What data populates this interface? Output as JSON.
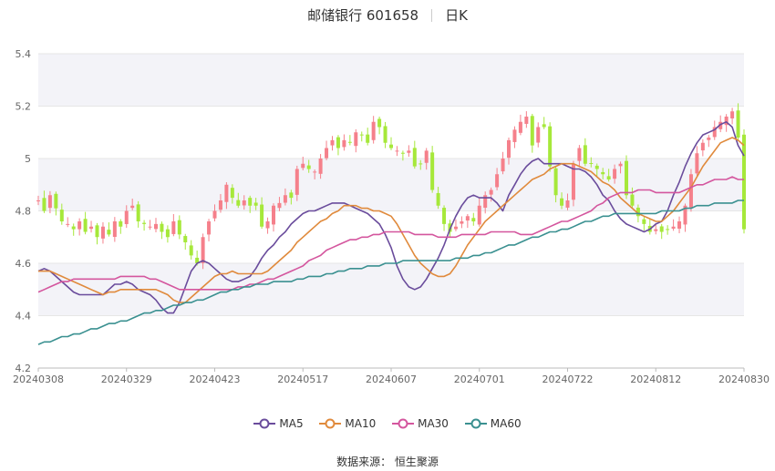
{
  "title": {
    "name": "邮储银行 601658",
    "period": "日K"
  },
  "source_text": "数据来源： 恒生聚源",
  "colors": {
    "up": "#f5808b",
    "down": "#a6e83a",
    "ma5": "#6a4c9c",
    "ma10": "#e08a3c",
    "ma30": "#d4569e",
    "ma60": "#3a9090",
    "band": "#f3f3f8",
    "grid": "#e6e6e6",
    "axis_text": "#666666"
  },
  "chart_data": {
    "type": "candlestick",
    "title": "邮储银行 601658",
    "subtitle": "日K",
    "ylim": [
      4.2,
      5.4
    ],
    "y_ticks": [
      "4.2",
      "4.4",
      "4.6",
      "4.8",
      "5",
      "5.2",
      "5.4"
    ],
    "x_ticks": [
      "20240308",
      "20240329",
      "20240423",
      "20240517",
      "20240607",
      "20240701",
      "20240722",
      "20240812",
      "20240830"
    ],
    "grid": true,
    "legend_position": "bottom",
    "legend": [
      "MA5",
      "MA10",
      "MA30",
      "MA60"
    ],
    "candles_count": 121,
    "closes": [
      4.84,
      4.8,
      4.86,
      4.81,
      4.76,
      4.75,
      4.73,
      4.76,
      4.72,
      4.74,
      4.7,
      4.74,
      4.71,
      4.76,
      4.74,
      4.8,
      4.82,
      4.76,
      4.75,
      4.74,
      4.75,
      4.72,
      4.7,
      4.76,
      4.71,
      4.68,
      4.63,
      4.6,
      4.7,
      4.76,
      4.8,
      4.84,
      4.9,
      4.85,
      4.82,
      4.84,
      4.82,
      4.82,
      4.74,
      4.76,
      4.82,
      4.83,
      4.86,
      4.85,
      4.96,
      4.98,
      4.96,
      4.95,
      5.0,
      5.04,
      5.07,
      5.04,
      5.07,
      5.06,
      5.1,
      5.09,
      5.06,
      5.14,
      5.12,
      5.06,
      5.04,
      5.03,
      5.02,
      5.03,
      4.97,
      4.98,
      5.03,
      4.88,
      4.82,
      4.75,
      4.72,
      4.74,
      4.76,
      4.78,
      4.76,
      4.82,
      4.86,
      4.88,
      4.94,
      5.0,
      5.07,
      5.11,
      5.14,
      5.16,
      5.05,
      5.12,
      5.12,
      4.97,
      4.86,
      4.82,
      4.84,
      4.98,
      5.04,
      4.98,
      4.98,
      4.96,
      4.94,
      4.92,
      4.96,
      4.98,
      4.86,
      4.82,
      4.78,
      4.75,
      4.72,
      4.73,
      4.72,
      4.73,
      4.74,
      4.76,
      4.82,
      4.94,
      5.02,
      5.06,
      5.08,
      5.12,
      5.14,
      5.16,
      5.18,
      5.08,
      4.73
    ],
    "series": [
      {
        "name": "MA5",
        "values": [
          4.57,
          4.58,
          4.57,
          4.55,
          4.53,
          4.51,
          4.49,
          4.48,
          4.48,
          4.48,
          4.48,
          4.48,
          4.5,
          4.52,
          4.52,
          4.53,
          4.52,
          4.5,
          4.49,
          4.48,
          4.46,
          4.43,
          4.41,
          4.41,
          4.45,
          4.51,
          4.57,
          4.6,
          4.61,
          4.6,
          4.58,
          4.56,
          4.54,
          4.53,
          4.53,
          4.54,
          4.55,
          4.58,
          4.62,
          4.65,
          4.67,
          4.7,
          4.72,
          4.75,
          4.77,
          4.79,
          4.8,
          4.8,
          4.81,
          4.82,
          4.83,
          4.83,
          4.83,
          4.82,
          4.81,
          4.8,
          4.79,
          4.77,
          4.75,
          4.71,
          4.66,
          4.59,
          4.54,
          4.51,
          4.5,
          4.51,
          4.54,
          4.58,
          4.62,
          4.67,
          4.73,
          4.78,
          4.82,
          4.85,
          4.86,
          4.85,
          4.85,
          4.85,
          4.83,
          4.8,
          4.86,
          4.9,
          4.94,
          4.97,
          4.99,
          5.0,
          4.98,
          4.98,
          4.98,
          4.98,
          4.97,
          4.96,
          4.96,
          4.95,
          4.93,
          4.9,
          4.86,
          4.84,
          4.8,
          4.77,
          4.75,
          4.74,
          4.73,
          4.72,
          4.73,
          4.75,
          4.76,
          4.8,
          4.86,
          4.91,
          4.97,
          5.02,
          5.06,
          5.09,
          5.1,
          5.11,
          5.13,
          5.14,
          5.12,
          5.05,
          5.01
        ]
      },
      {
        "name": "MA10",
        "values": [
          4.57,
          4.57,
          4.57,
          4.56,
          4.55,
          4.54,
          4.53,
          4.52,
          4.51,
          4.5,
          4.49,
          4.48,
          4.49,
          4.49,
          4.5,
          4.5,
          4.5,
          4.5,
          4.5,
          4.5,
          4.5,
          4.49,
          4.48,
          4.46,
          4.45,
          4.45,
          4.47,
          4.49,
          4.51,
          4.53,
          4.55,
          4.56,
          4.56,
          4.57,
          4.56,
          4.56,
          4.56,
          4.56,
          4.56,
          4.57,
          4.59,
          4.61,
          4.63,
          4.65,
          4.68,
          4.7,
          4.72,
          4.74,
          4.76,
          4.77,
          4.79,
          4.8,
          4.82,
          4.82,
          4.82,
          4.81,
          4.81,
          4.8,
          4.8,
          4.79,
          4.78,
          4.75,
          4.71,
          4.67,
          4.63,
          4.6,
          4.58,
          4.56,
          4.55,
          4.55,
          4.56,
          4.59,
          4.63,
          4.67,
          4.7,
          4.73,
          4.76,
          4.78,
          4.8,
          4.82,
          4.84,
          4.86,
          4.88,
          4.9,
          4.92,
          4.93,
          4.94,
          4.96,
          4.97,
          4.98,
          4.98,
          4.98,
          4.97,
          4.96,
          4.95,
          4.93,
          4.91,
          4.9,
          4.88,
          4.85,
          4.83,
          4.81,
          4.79,
          4.78,
          4.77,
          4.76,
          4.76,
          4.78,
          4.8,
          4.83,
          4.86,
          4.89,
          4.93,
          4.97,
          5.0,
          5.03,
          5.06,
          5.07,
          5.08,
          5.07,
          5.05
        ]
      },
      {
        "name": "MA30",
        "values": [
          4.49,
          4.5,
          4.51,
          4.52,
          4.53,
          4.53,
          4.54,
          4.54,
          4.54,
          4.54,
          4.54,
          4.54,
          4.54,
          4.54,
          4.55,
          4.55,
          4.55,
          4.55,
          4.55,
          4.54,
          4.54,
          4.53,
          4.52,
          4.51,
          4.5,
          4.5,
          4.5,
          4.5,
          4.5,
          4.5,
          4.5,
          4.5,
          4.5,
          4.5,
          4.51,
          4.51,
          4.52,
          4.52,
          4.53,
          4.54,
          4.54,
          4.55,
          4.56,
          4.57,
          4.58,
          4.59,
          4.61,
          4.62,
          4.63,
          4.65,
          4.66,
          4.67,
          4.68,
          4.69,
          4.69,
          4.7,
          4.7,
          4.71,
          4.71,
          4.72,
          4.72,
          4.72,
          4.72,
          4.72,
          4.71,
          4.71,
          4.71,
          4.71,
          4.7,
          4.7,
          4.7,
          4.7,
          4.71,
          4.71,
          4.71,
          4.71,
          4.71,
          4.72,
          4.72,
          4.72,
          4.72,
          4.72,
          4.71,
          4.71,
          4.71,
          4.72,
          4.73,
          4.74,
          4.75,
          4.76,
          4.76,
          4.77,
          4.78,
          4.79,
          4.8,
          4.82,
          4.83,
          4.85,
          4.86,
          4.87,
          4.87,
          4.87,
          4.88,
          4.88,
          4.88,
          4.87,
          4.87,
          4.87,
          4.87,
          4.87,
          4.88,
          4.89,
          4.9,
          4.9,
          4.91,
          4.92,
          4.92,
          4.92,
          4.93,
          4.92,
          4.92
        ]
      },
      {
        "name": "MA60",
        "values": [
          4.29,
          4.3,
          4.3,
          4.31,
          4.32,
          4.32,
          4.33,
          4.33,
          4.34,
          4.35,
          4.35,
          4.36,
          4.37,
          4.37,
          4.38,
          4.38,
          4.39,
          4.4,
          4.41,
          4.41,
          4.42,
          4.42,
          4.43,
          4.44,
          4.44,
          4.45,
          4.45,
          4.46,
          4.46,
          4.47,
          4.48,
          4.49,
          4.49,
          4.5,
          4.5,
          4.51,
          4.51,
          4.52,
          4.52,
          4.52,
          4.53,
          4.53,
          4.53,
          4.53,
          4.54,
          4.54,
          4.55,
          4.55,
          4.55,
          4.56,
          4.56,
          4.57,
          4.57,
          4.58,
          4.58,
          4.58,
          4.59,
          4.59,
          4.59,
          4.6,
          4.6,
          4.6,
          4.61,
          4.61,
          4.61,
          4.61,
          4.61,
          4.61,
          4.61,
          4.61,
          4.61,
          4.62,
          4.62,
          4.62,
          4.63,
          4.63,
          4.64,
          4.64,
          4.65,
          4.66,
          4.67,
          4.67,
          4.68,
          4.69,
          4.7,
          4.7,
          4.71,
          4.72,
          4.72,
          4.73,
          4.73,
          4.74,
          4.75,
          4.76,
          4.76,
          4.77,
          4.78,
          4.78,
          4.79,
          4.79,
          4.79,
          4.79,
          4.79,
          4.79,
          4.79,
          4.79,
          4.8,
          4.8,
          4.8,
          4.8,
          4.81,
          4.81,
          4.82,
          4.82,
          4.82,
          4.83,
          4.83,
          4.83,
          4.83,
          4.84,
          4.84
        ]
      }
    ]
  }
}
